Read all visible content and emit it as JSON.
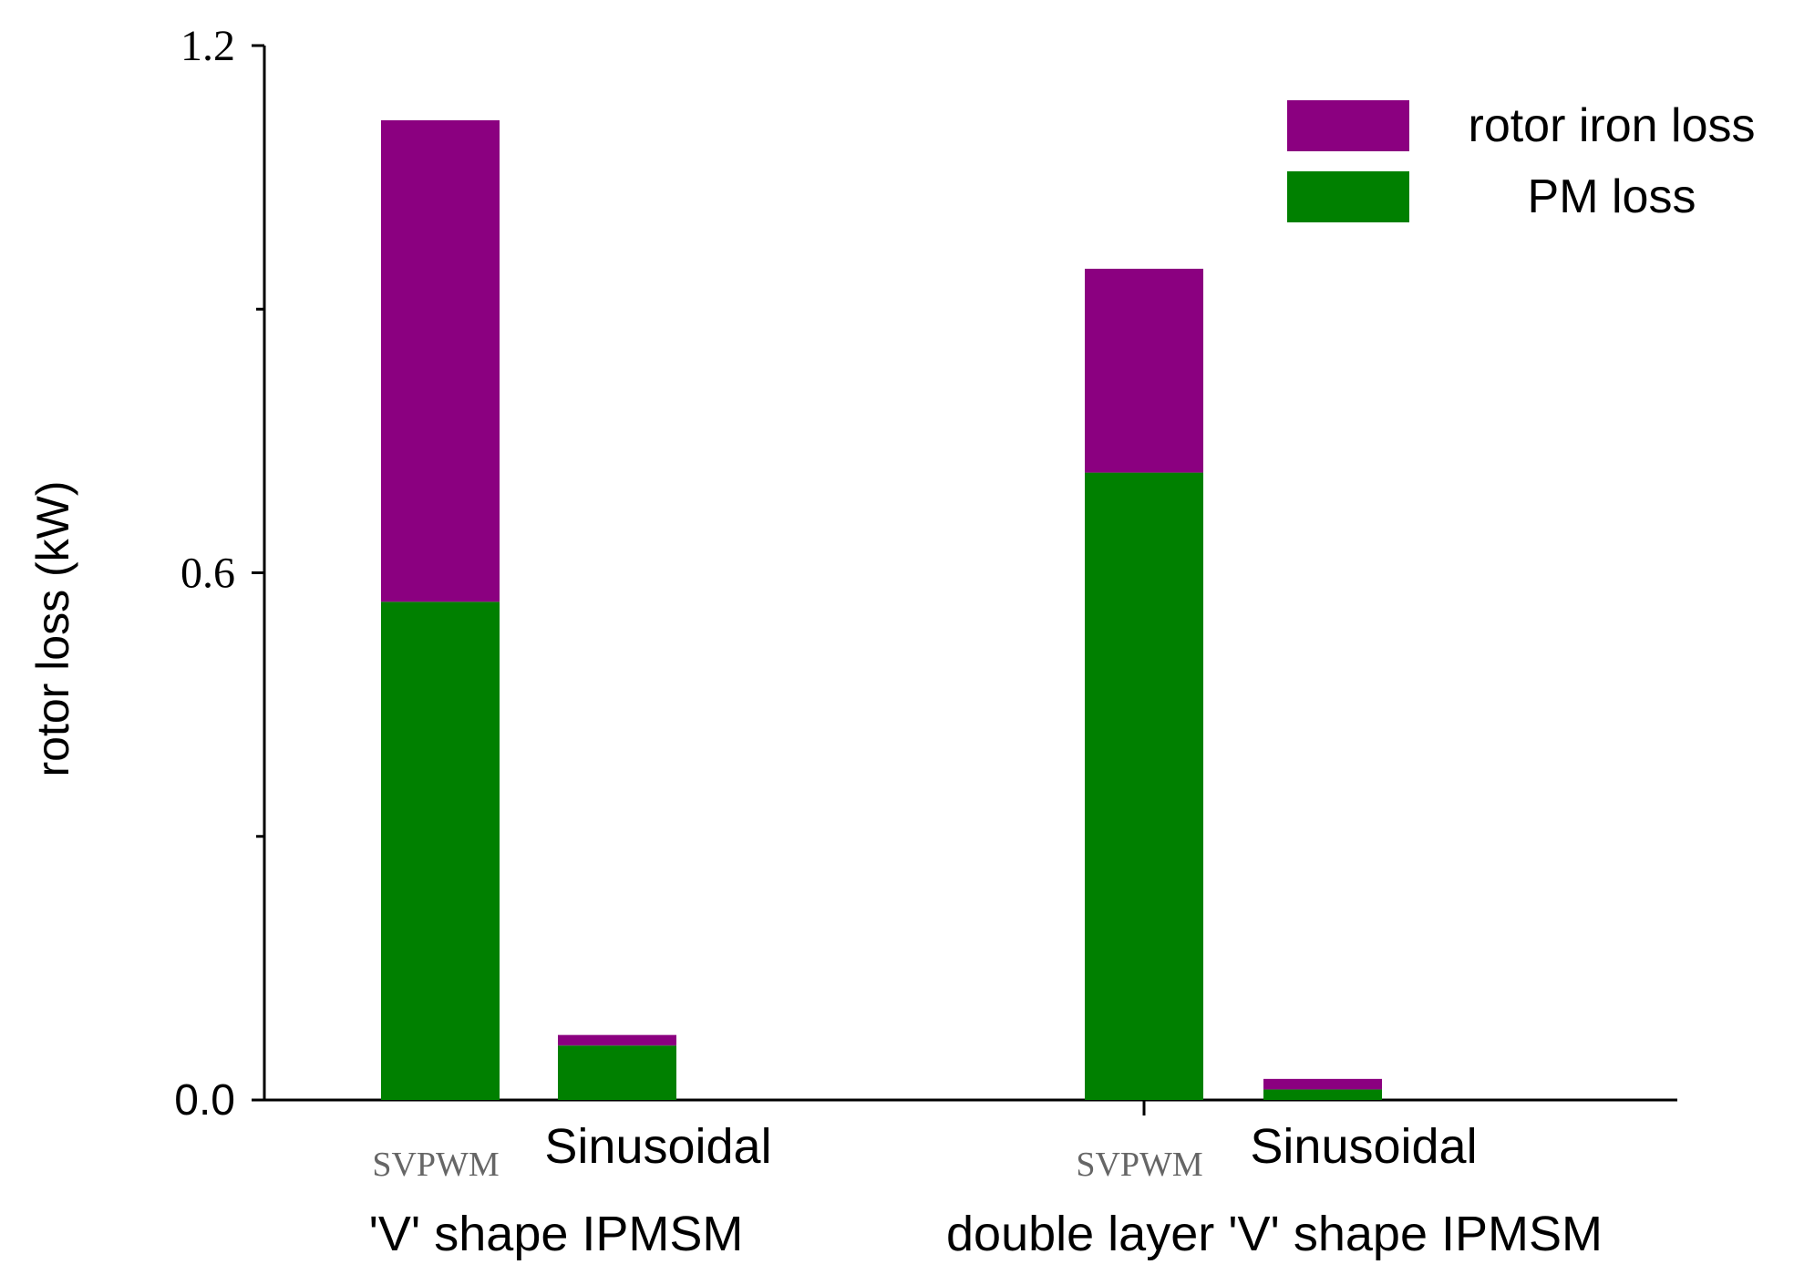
{
  "chart_data": {
    "type": "bar",
    "stacked": true,
    "ylabel": "rotor loss (kW)",
    "ylim": [
      0,
      1.2
    ],
    "yticks": [
      "0.0",
      "0.6",
      "1.2"
    ],
    "grid": false,
    "legend_position": "top-right",
    "groups": [
      {
        "label": "'V' shape IPMSM",
        "bars": [
          "SVPWM",
          "Sinusoidal"
        ]
      },
      {
        "label": "double layer 'V' shape IPMSM",
        "bars": [
          "SVPWM",
          "Sinusoidal"
        ]
      }
    ],
    "categories": [
      "SVPWM",
      "Sinusoidal",
      "SVPWM",
      "Sinusoidal"
    ],
    "series": [
      {
        "name": "PM loss",
        "color": "#008000",
        "values": [
          0.567,
          0.062,
          0.714,
          0.012
        ]
      },
      {
        "name": "rotor iron loss",
        "color": "#8b0080",
        "values": [
          0.548,
          0.012,
          0.232,
          0.012
        ]
      }
    ],
    "legend": [
      {
        "name": "rotor iron loss",
        "color": "#8b0080"
      },
      {
        "name": "PM loss",
        "color": "#008000"
      }
    ]
  }
}
